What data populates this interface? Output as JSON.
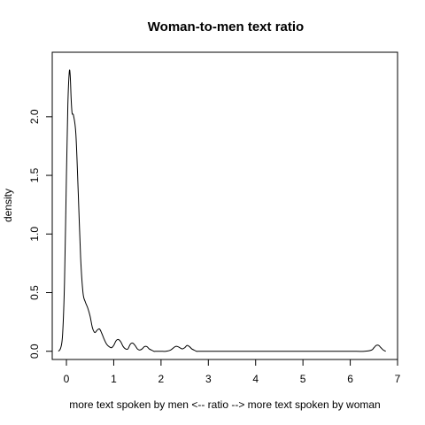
{
  "chart_data": {
    "type": "line",
    "title": "Woman-to-men text ratio",
    "xlabel": "more text spoken by men <-- ratio --> more text spoken by woman",
    "ylabel": "density",
    "xlim": [
      -0.3,
      7
    ],
    "ylim": [
      -0.07,
      2.55
    ],
    "x_ticks": [
      0,
      1,
      2,
      3,
      4,
      5,
      6,
      7
    ],
    "y_ticks": [
      0.0,
      0.5,
      1.0,
      1.5,
      2.0
    ],
    "x_tick_labels": [
      "0",
      "1",
      "2",
      "3",
      "4",
      "5",
      "6",
      "7"
    ],
    "y_tick_labels": [
      "0.0",
      "0.5",
      "1.0",
      "1.5",
      "2.0"
    ],
    "grid": false,
    "legend": "none",
    "series": [
      {
        "x": [
          -0.17,
          -0.12,
          -0.08,
          -0.04,
          0.0,
          0.03,
          0.06,
          0.08,
          0.1,
          0.12,
          0.15,
          0.2,
          0.25,
          0.3,
          0.35,
          0.4,
          0.45,
          0.5,
          0.55,
          0.6,
          0.65,
          0.7,
          0.75,
          0.8,
          0.85,
          0.9,
          0.95,
          1.0,
          1.05,
          1.1,
          1.15,
          1.2,
          1.25,
          1.3,
          1.35,
          1.4,
          1.45,
          1.5,
          1.55,
          1.6,
          1.65,
          1.7,
          1.75,
          1.8,
          1.85,
          1.9,
          2.0,
          2.1,
          2.2,
          2.3,
          2.35,
          2.4,
          2.45,
          2.5,
          2.55,
          2.6,
          2.65,
          2.7,
          2.75,
          2.8,
          3.0,
          3.5,
          4.0,
          4.5,
          5.0,
          5.5,
          6.0,
          6.3,
          6.45,
          6.5,
          6.55,
          6.6,
          6.65,
          6.7,
          6.75
        ],
        "y": [
          0.0,
          0.03,
          0.15,
          0.6,
          1.5,
          2.1,
          2.38,
          2.35,
          2.15,
          2.03,
          2.01,
          1.85,
          1.35,
          0.8,
          0.5,
          0.42,
          0.37,
          0.3,
          0.2,
          0.16,
          0.18,
          0.19,
          0.15,
          0.1,
          0.06,
          0.04,
          0.03,
          0.05,
          0.09,
          0.1,
          0.08,
          0.04,
          0.02,
          0.02,
          0.06,
          0.07,
          0.05,
          0.02,
          0.01,
          0.02,
          0.04,
          0.04,
          0.02,
          0.01,
          0.0,
          0.0,
          0.0,
          0.0,
          0.01,
          0.04,
          0.04,
          0.03,
          0.02,
          0.03,
          0.05,
          0.04,
          0.02,
          0.01,
          0.0,
          0.0,
          0.0,
          0.0,
          0.0,
          0.0,
          0.0,
          0.0,
          0.0,
          0.0,
          0.01,
          0.03,
          0.05,
          0.05,
          0.03,
          0.01,
          0.0
        ]
      }
    ]
  }
}
